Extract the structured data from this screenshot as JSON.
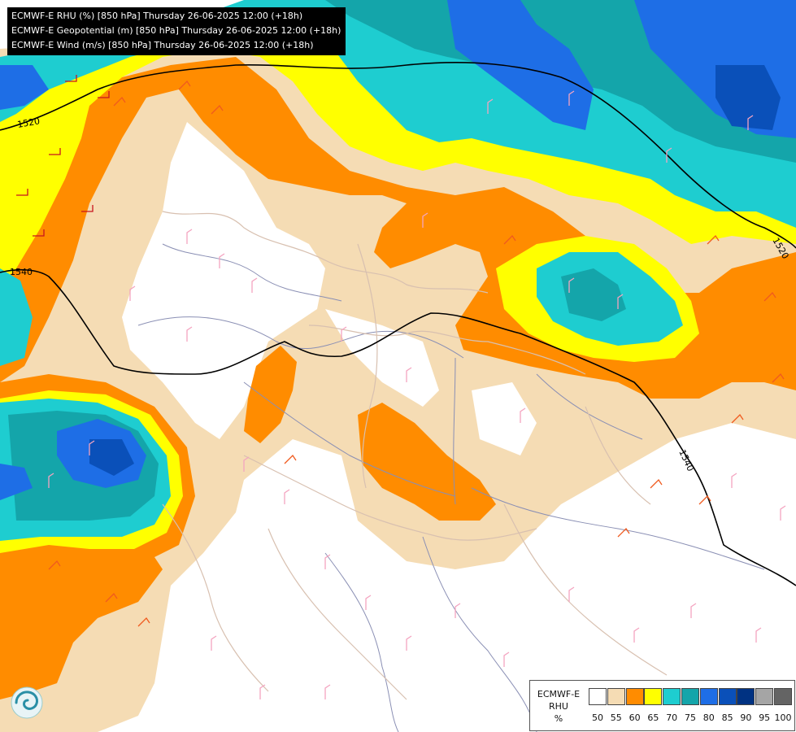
{
  "titles": [
    "ECMWF-E RHU (%) [850 hPa] Thursday 26-06-2025 12:00 (+18h)",
    "ECMWF-E Geopotential (m) [850 hPa] Thursday 26-06-2025 12:00 (+18h)",
    "ECMWF-E Wind (m/s) [850 hPa] Thursday 26-06-2025 12:00 (+18h)"
  ],
  "contour_labels": [
    "1520",
    "1540",
    "1520",
    "1540"
  ],
  "legend": {
    "title_line1": "ECMWF-E",
    "title_line2": "RHU",
    "unit": "%",
    "levels": [
      "50",
      "55",
      "60",
      "65",
      "70",
      "75",
      "80",
      "85",
      "90",
      "95",
      "100"
    ],
    "colors": [
      "#ffffff",
      "#f5dcb4",
      "#ff8c00",
      "#ffff00",
      "#1ecdd0",
      "#14a5aa",
      "#1e6ee6",
      "#0a50b9",
      "#003282",
      "#a5a5a5",
      "#646464"
    ]
  },
  "logo_icon": "ecmwf-swirl-icon"
}
